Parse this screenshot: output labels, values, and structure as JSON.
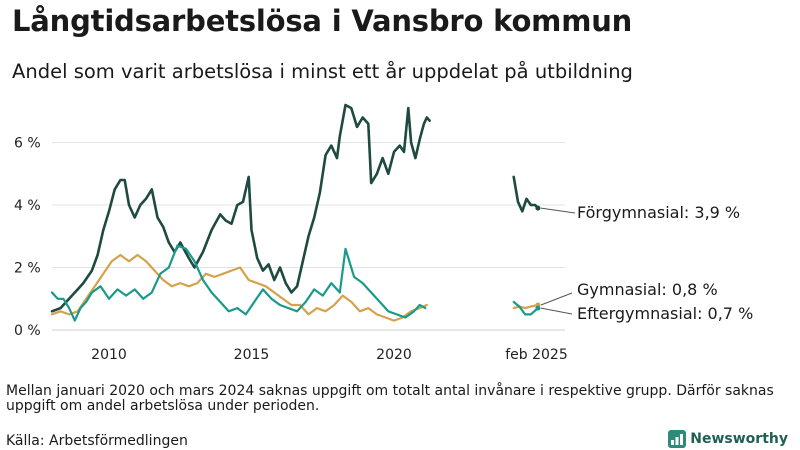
{
  "title": "Långtidsarbetslösa i Vansbro kommun",
  "subtitle": "Andel som varit arbetslösa i minst ett år uppdelat på utbildning",
  "note": "Mellan januari 2020 och mars 2024 saknas uppgift om totalt antal invånare i respektive grupp. Därför saknas uppgift om andel arbetslösa under perioden.",
  "source": "Källa: Arbetsförmedlingen",
  "brand": "Newsworthy",
  "colors": {
    "forgymnasial": "#1f4a3f",
    "gymnasial": "#d4a24c",
    "eftergymnasial": "#1a9a8a",
    "grid": "#e3e3e3",
    "axis": "#555555"
  },
  "chart_data": {
    "type": "line",
    "x_unit": "year",
    "xlim": [
      2008.0,
      2026.0
    ],
    "ylim": [
      0,
      7.2
    ],
    "y_ticks": [
      0,
      2,
      4,
      6
    ],
    "y_tick_labels": [
      "0 %",
      "2 %",
      "4 %",
      "6 %"
    ],
    "x_ticks": [
      2010,
      2015,
      2020,
      2025
    ],
    "x_tick_labels": [
      "2010",
      "2015",
      "2020",
      "feb 2025"
    ],
    "grid": "horizontal",
    "legend": "end labels",
    "series": [
      {
        "name": "Förgymnasial",
        "end_label": "Förgymnasial: 3,9 %",
        "color": "#1f4a3f",
        "segments": [
          [
            [
              2008.0,
              0.6
            ],
            [
              2008.3,
              0.7
            ],
            [
              2008.6,
              1.0
            ],
            [
              2008.9,
              1.3
            ],
            [
              2009.1,
              1.5
            ],
            [
              2009.4,
              1.9
            ],
            [
              2009.6,
              2.4
            ],
            [
              2009.8,
              3.2
            ],
            [
              2010.0,
              3.8
            ],
            [
              2010.2,
              4.5
            ],
            [
              2010.4,
              4.8
            ],
            [
              2010.55,
              4.8
            ],
            [
              2010.7,
              4.0
            ],
            [
              2010.9,
              3.6
            ],
            [
              2011.1,
              4.0
            ],
            [
              2011.3,
              4.2
            ],
            [
              2011.5,
              4.5
            ],
            [
              2011.7,
              3.6
            ],
            [
              2011.9,
              3.3
            ],
            [
              2012.1,
              2.8
            ],
            [
              2012.3,
              2.5
            ],
            [
              2012.5,
              2.8
            ],
            [
              2012.8,
              2.3
            ],
            [
              2013.0,
              2.0
            ],
            [
              2013.3,
              2.5
            ],
            [
              2013.6,
              3.2
            ],
            [
              2013.9,
              3.7
            ],
            [
              2014.1,
              3.5
            ],
            [
              2014.3,
              3.4
            ],
            [
              2014.5,
              4.0
            ],
            [
              2014.7,
              4.1
            ],
            [
              2014.9,
              4.9
            ],
            [
              2015.0,
              3.2
            ],
            [
              2015.2,
              2.3
            ],
            [
              2015.4,
              1.9
            ],
            [
              2015.6,
              2.1
            ],
            [
              2015.8,
              1.6
            ],
            [
              2016.0,
              2.0
            ],
            [
              2016.2,
              1.5
            ],
            [
              2016.4,
              1.2
            ],
            [
              2016.6,
              1.4
            ],
            [
              2016.8,
              2.2
            ],
            [
              2017.0,
              3.0
            ],
            [
              2017.2,
              3.6
            ],
            [
              2017.4,
              4.4
            ],
            [
              2017.6,
              5.6
            ],
            [
              2017.8,
              5.9
            ],
            [
              2018.0,
              5.5
            ],
            [
              2018.1,
              6.2
            ],
            [
              2018.3,
              7.2
            ],
            [
              2018.5,
              7.1
            ],
            [
              2018.7,
              6.5
            ],
            [
              2018.9,
              6.8
            ],
            [
              2019.1,
              6.6
            ],
            [
              2019.2,
              4.7
            ],
            [
              2019.4,
              5.0
            ],
            [
              2019.6,
              5.5
            ],
            [
              2019.8,
              5.0
            ],
            [
              2020.0,
              5.7
            ],
            [
              2020.2,
              5.9
            ],
            [
              2020.35,
              5.7
            ],
            [
              2020.5,
              7.1
            ],
            [
              2020.6,
              6.0
            ],
            [
              2020.75,
              5.5
            ],
            [
              2020.9,
              6.1
            ],
            [
              2021.05,
              6.6
            ],
            [
              2021.15,
              6.8
            ],
            [
              2021.25,
              6.7
            ]
          ],
          [
            [
              2024.2,
              4.9
            ],
            [
              2024.35,
              4.1
            ],
            [
              2024.5,
              3.8
            ],
            [
              2024.65,
              4.2
            ],
            [
              2024.8,
              4.0
            ],
            [
              2024.95,
              4.0
            ],
            [
              2025.05,
              3.9
            ]
          ]
        ]
      },
      {
        "name": "Gymnasial",
        "end_label": "Gymnasial: 0,8 %",
        "color": "#d4a24c",
        "segments": [
          [
            [
              2008.0,
              0.5
            ],
            [
              2008.3,
              0.6
            ],
            [
              2008.6,
              0.5
            ],
            [
              2008.9,
              0.6
            ],
            [
              2009.2,
              1.0
            ],
            [
              2009.5,
              1.4
            ],
            [
              2009.8,
              1.8
            ],
            [
              2010.1,
              2.2
            ],
            [
              2010.4,
              2.4
            ],
            [
              2010.7,
              2.2
            ],
            [
              2011.0,
              2.4
            ],
            [
              2011.3,
              2.2
            ],
            [
              2011.6,
              1.9
            ],
            [
              2011.9,
              1.6
            ],
            [
              2012.2,
              1.4
            ],
            [
              2012.5,
              1.5
            ],
            [
              2012.8,
              1.4
            ],
            [
              2013.1,
              1.5
            ],
            [
              2013.4,
              1.8
            ],
            [
              2013.7,
              1.7
            ],
            [
              2014.0,
              1.8
            ],
            [
              2014.3,
              1.9
            ],
            [
              2014.6,
              2.0
            ],
            [
              2014.9,
              1.6
            ],
            [
              2015.2,
              1.5
            ],
            [
              2015.5,
              1.4
            ],
            [
              2015.8,
              1.2
            ],
            [
              2016.1,
              1.0
            ],
            [
              2016.4,
              0.8
            ],
            [
              2016.7,
              0.8
            ],
            [
              2017.0,
              0.5
            ],
            [
              2017.3,
              0.7
            ],
            [
              2017.6,
              0.6
            ],
            [
              2017.9,
              0.8
            ],
            [
              2018.2,
              1.1
            ],
            [
              2018.5,
              0.9
            ],
            [
              2018.8,
              0.6
            ],
            [
              2019.1,
              0.7
            ],
            [
              2019.4,
              0.5
            ],
            [
              2019.7,
              0.4
            ],
            [
              2020.0,
              0.3
            ],
            [
              2020.3,
              0.4
            ],
            [
              2020.6,
              0.6
            ],
            [
              2020.9,
              0.7
            ],
            [
              2021.15,
              0.8
            ]
          ],
          [
            [
              2024.2,
              0.7
            ],
            [
              2024.4,
              0.75
            ],
            [
              2024.6,
              0.7
            ],
            [
              2024.8,
              0.75
            ],
            [
              2025.05,
              0.8
            ]
          ]
        ]
      },
      {
        "name": "Eftergymnasial",
        "end_label": "Eftergymnasial: 0,7 %",
        "color": "#1a9a8a",
        "segments": [
          [
            [
              2008.0,
              1.2
            ],
            [
              2008.2,
              1.0
            ],
            [
              2008.4,
              1.0
            ],
            [
              2008.6,
              0.7
            ],
            [
              2008.8,
              0.3
            ],
            [
              2009.0,
              0.7
            ],
            [
              2009.2,
              0.9
            ],
            [
              2009.4,
              1.2
            ],
            [
              2009.7,
              1.4
            ],
            [
              2010.0,
              1.0
            ],
            [
              2010.3,
              1.3
            ],
            [
              2010.6,
              1.1
            ],
            [
              2010.9,
              1.3
            ],
            [
              2011.2,
              1.0
            ],
            [
              2011.5,
              1.2
            ],
            [
              2011.8,
              1.8
            ],
            [
              2012.1,
              2.0
            ],
            [
              2012.4,
              2.7
            ],
            [
              2012.7,
              2.6
            ],
            [
              2013.0,
              2.2
            ],
            [
              2013.3,
              1.6
            ],
            [
              2013.6,
              1.2
            ],
            [
              2013.9,
              0.9
            ],
            [
              2014.2,
              0.6
            ],
            [
              2014.5,
              0.7
            ],
            [
              2014.8,
              0.5
            ],
            [
              2015.1,
              0.9
            ],
            [
              2015.4,
              1.3
            ],
            [
              2015.7,
              1.0
            ],
            [
              2016.0,
              0.8
            ],
            [
              2016.3,
              0.7
            ],
            [
              2016.6,
              0.6
            ],
            [
              2016.9,
              0.9
            ],
            [
              2017.2,
              1.3
            ],
            [
              2017.5,
              1.1
            ],
            [
              2017.8,
              1.5
            ],
            [
              2018.1,
              1.2
            ],
            [
              2018.3,
              2.6
            ],
            [
              2018.6,
              1.7
            ],
            [
              2018.9,
              1.5
            ],
            [
              2019.2,
              1.2
            ],
            [
              2019.5,
              0.9
            ],
            [
              2019.8,
              0.6
            ],
            [
              2020.1,
              0.5
            ],
            [
              2020.4,
              0.4
            ],
            [
              2020.7,
              0.6
            ],
            [
              2020.9,
              0.8
            ],
            [
              2021.1,
              0.7
            ]
          ],
          [
            [
              2024.2,
              0.9
            ],
            [
              2024.4,
              0.75
            ],
            [
              2024.6,
              0.5
            ],
            [
              2024.8,
              0.5
            ],
            [
              2025.05,
              0.7
            ]
          ]
        ]
      }
    ]
  }
}
